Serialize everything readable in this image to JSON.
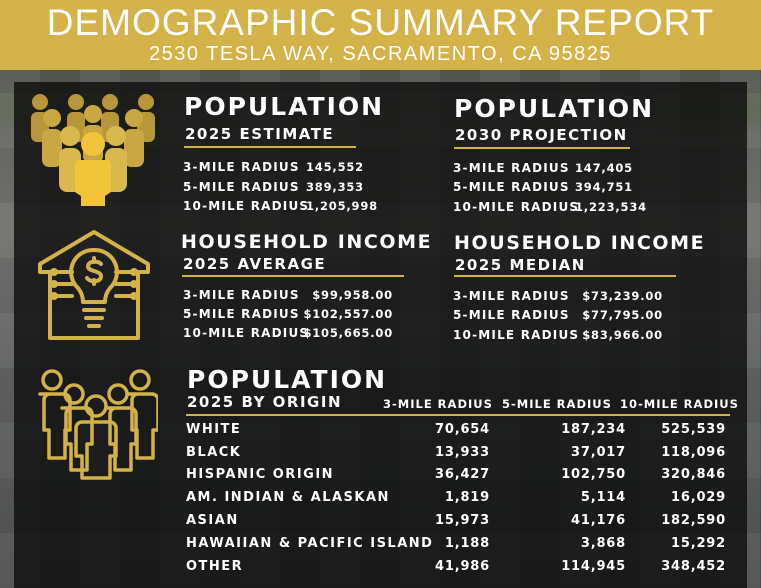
{
  "header": {
    "title": "DEMOGRAPHIC SUMMARY REPORT",
    "subtitle": "2530 TESLA WAY, SACRAMENTO, CA 95825"
  },
  "colors": {
    "accent": "#d4b24a",
    "panel": "#0c0c0c",
    "text": "#ffffff"
  },
  "population_2025": {
    "title": "POPULATION",
    "subtitle": "2025 ESTIMATE",
    "rows": [
      {
        "label": "3-MILE RADIUS",
        "value": "145,552"
      },
      {
        "label": "5-MILE RADIUS",
        "value": "389,353"
      },
      {
        "label": "10-MILE RADIUS",
        "value": "1,205,998"
      }
    ]
  },
  "population_2030": {
    "title": "POPULATION",
    "subtitle": "2030 PROJECTION",
    "rows": [
      {
        "label": "3-MILE RADIUS",
        "value": "147,405"
      },
      {
        "label": "5-MILE RADIUS",
        "value": "394,751"
      },
      {
        "label": "10-MILE RADIUS",
        "value": "1,223,534"
      }
    ]
  },
  "income_average": {
    "title": "HOUSEHOLD INCOME",
    "subtitle": "2025 AVERAGE",
    "rows": [
      {
        "label": "3-MILE RADIUS",
        "value": "$99,958.00"
      },
      {
        "label": "5-MILE RADIUS",
        "value": "$102,557.00"
      },
      {
        "label": "10-MILE RADIUS",
        "value": "$105,665.00"
      }
    ]
  },
  "income_median": {
    "title": "HOUSEHOLD INCOME",
    "subtitle": "2025 MEDIAN",
    "rows": [
      {
        "label": "3-MILE RADIUS",
        "value": "$73,239.00"
      },
      {
        "label": "5-MILE RADIUS",
        "value": "$77,795.00"
      },
      {
        "label": "10-MILE RADIUS",
        "value": "$83,966.00"
      }
    ]
  },
  "origin": {
    "title": "POPULATION",
    "subtitle": "2025 BY ORIGIN",
    "columns": [
      "3-MILE RADIUS",
      "5-MILE RADIUS",
      "10-MILE RADIUS"
    ],
    "rows": [
      {
        "label": "WHITE",
        "values": [
          "70,654",
          "187,234",
          "525,539"
        ]
      },
      {
        "label": "BLACK",
        "values": [
          "13,933",
          "37,017",
          "118,096"
        ]
      },
      {
        "label": "HISPANIC ORIGIN",
        "values": [
          "36,427",
          "102,750",
          "320,846"
        ]
      },
      {
        "label": "AM. INDIAN & ALASKAN",
        "values": [
          "1,819",
          "5,114",
          "16,029"
        ]
      },
      {
        "label": "ASIAN",
        "values": [
          "15,973",
          "41,176",
          "182,590"
        ]
      },
      {
        "label": "HAWAIIAN & PACIFIC ISLAND",
        "values": [
          "1,188",
          "3,868",
          "15,292"
        ]
      },
      {
        "label": "OTHER",
        "values": [
          "41,986",
          "114,945",
          "348,452"
        ]
      }
    ]
  },
  "icons": {
    "population": "crowd-icon",
    "income": "house-lightbulb-dollar-icon",
    "origin": "group-people-icon"
  }
}
